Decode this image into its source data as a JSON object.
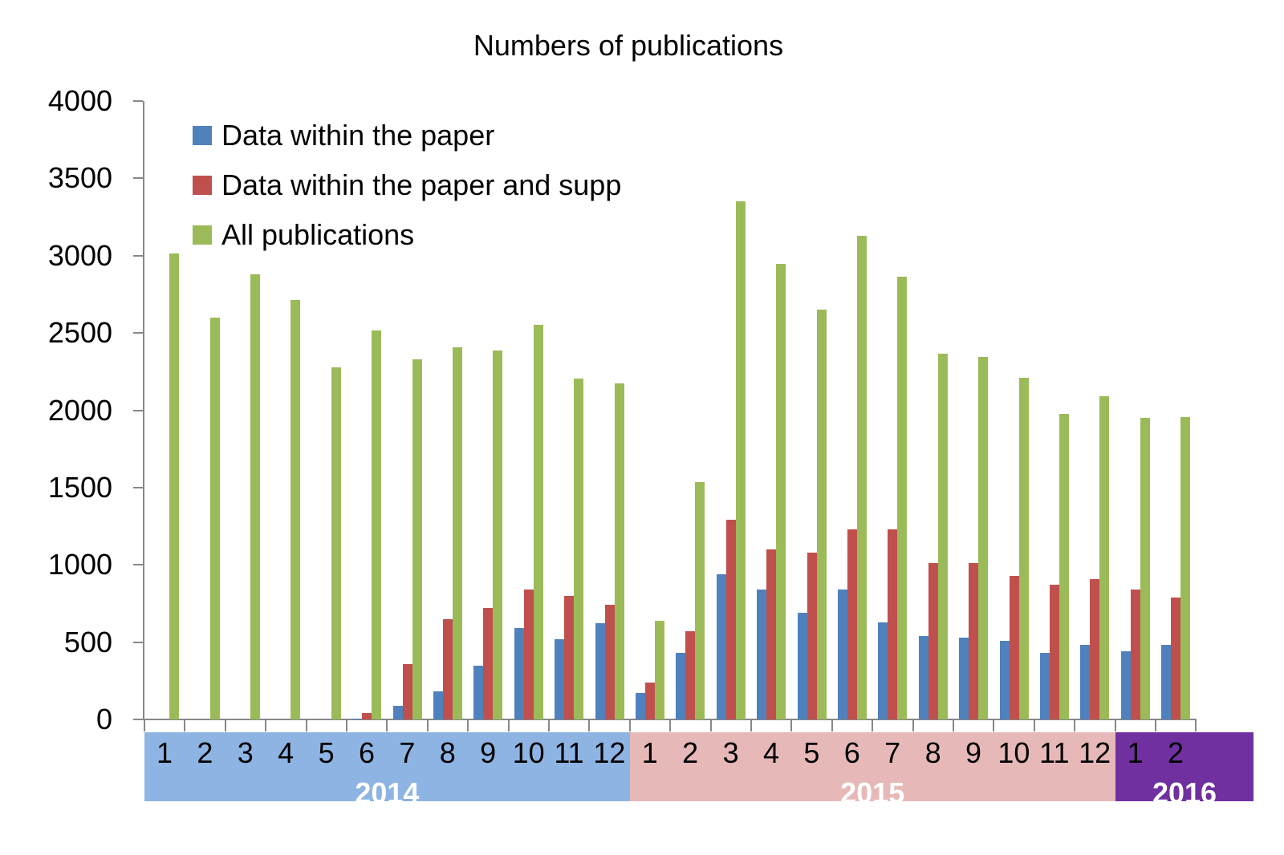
{
  "chart_data": {
    "type": "bar",
    "title": "Numbers of publications",
    "xlabel": "",
    "ylabel": "",
    "ylim": [
      0,
      4000
    ],
    "yticks": [
      0,
      500,
      1000,
      1500,
      2000,
      2500,
      3000,
      3500,
      4000
    ],
    "grid": false,
    "legend_position": "upper-left inside",
    "categories": [
      "2014-1",
      "2014-2",
      "2014-3",
      "2014-4",
      "2014-5",
      "2014-6",
      "2014-7",
      "2014-8",
      "2014-9",
      "2014-10",
      "2014-11",
      "2014-12",
      "2015-1",
      "2015-2",
      "2015-3",
      "2015-4",
      "2015-5",
      "2015-6",
      "2015-7",
      "2015-8",
      "2015-9",
      "2015-10",
      "2015-11",
      "2015-12",
      "2016-1",
      "2016-2"
    ],
    "month_labels": [
      "1",
      "2",
      "3",
      "4",
      "5",
      "6",
      "7",
      "8",
      "9",
      "10",
      "11",
      "12",
      "1",
      "2",
      "3",
      "4",
      "5",
      "6",
      "7",
      "8",
      "9",
      "10",
      "11",
      "12",
      "1",
      "2"
    ],
    "year_groups": [
      {
        "label": "2014",
        "count": 12,
        "color": "#8EB4E3"
      },
      {
        "label": "2015",
        "count": 12,
        "color": "#E6B9B8"
      },
      {
        "label": "2016",
        "count": 2,
        "color": "#7030A0"
      }
    ],
    "series": [
      {
        "name": "Data within the paper",
        "color": "#4F81BD",
        "values": [
          0,
          0,
          0,
          0,
          0,
          5,
          90,
          180,
          350,
          590,
          520,
          620,
          170,
          430,
          940,
          840,
          690,
          840,
          630,
          540,
          530,
          510,
          430,
          480,
          440,
          480
        ]
      },
      {
        "name": "Data within the paper and supp",
        "color": "#C0504D",
        "values": [
          0,
          0,
          0,
          0,
          0,
          40,
          360,
          650,
          720,
          840,
          800,
          740,
          240,
          570,
          1290,
          1100,
          1080,
          1230,
          1230,
          1010,
          1010,
          930,
          870,
          910,
          840,
          790
        ]
      },
      {
        "name": "All publications",
        "color": "#9BBB59",
        "values": [
          3015,
          2600,
          2880,
          2715,
          2280,
          2515,
          2330,
          2405,
          2385,
          2550,
          2205,
          2175,
          640,
          1535,
          3350,
          2945,
          2650,
          3130,
          2865,
          2365,
          2345,
          2210,
          1975,
          2090,
          1950,
          1955
        ]
      }
    ]
  }
}
